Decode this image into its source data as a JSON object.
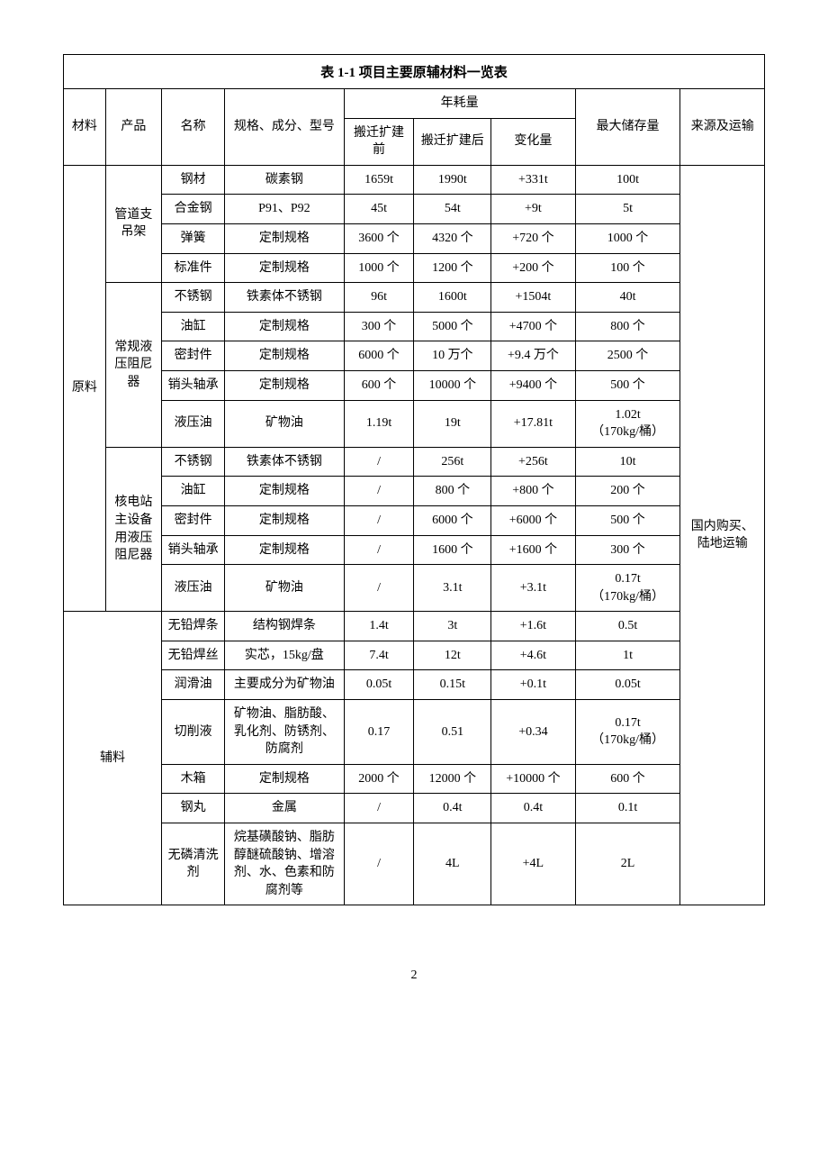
{
  "caption": "表 1-1   项目主要原辅材料一览表",
  "headers": {
    "material": "材料",
    "product": "产品",
    "name": "名称",
    "spec": "规格、成分、型号",
    "consumption": "年耗量",
    "before": "搬迁扩建前",
    "after": "搬迁扩建后",
    "change": "变化量",
    "storage": "最大储存量",
    "source": "来源及运输"
  },
  "materialGroups": {
    "raw": "原料",
    "aux": "辅料"
  },
  "productGroups": {
    "p1": "管道支吊架",
    "p2": "常规液压阻尼器",
    "p3": "核电站主设备用液压阻尼器"
  },
  "sourceText": "国内购买、\n陆地运输",
  "rows": [
    {
      "name": "钢材",
      "spec": "碳素钢",
      "before": "1659t",
      "after": "1990t",
      "change": "+331t",
      "storage": "100t"
    },
    {
      "name": "合金钢",
      "spec": "P91、P92",
      "before": "45t",
      "after": "54t",
      "change": "+9t",
      "storage": "5t"
    },
    {
      "name": "弹簧",
      "spec": "定制规格",
      "before": "3600 个",
      "after": "4320 个",
      "change": "+720 个",
      "storage": "1000 个"
    },
    {
      "name": "标准件",
      "spec": "定制规格",
      "before": "1000 个",
      "after": "1200 个",
      "change": "+200 个",
      "storage": "100 个"
    },
    {
      "name": "不锈钢",
      "spec": "铁素体不锈钢",
      "before": "96t",
      "after": "1600t",
      "change": "+1504t",
      "storage": "40t"
    },
    {
      "name": "油缸",
      "spec": "定制规格",
      "before": "300 个",
      "after": "5000 个",
      "change": "+4700 个",
      "storage": "800 个"
    },
    {
      "name": "密封件",
      "spec": "定制规格",
      "before": "6000 个",
      "after": "10 万个",
      "change": "+9.4 万个",
      "storage": "2500 个"
    },
    {
      "name": "销头轴承",
      "spec": "定制规格",
      "before": "600 个",
      "after": "10000 个",
      "change": "+9400 个",
      "storage": "500 个"
    },
    {
      "name": "液压油",
      "spec": "矿物油",
      "before": "1.19t",
      "after": "19t",
      "change": "+17.81t",
      "storage": "1.02t\n（170kg/桶）"
    },
    {
      "name": "不锈钢",
      "spec": "铁素体不锈钢",
      "before": "/",
      "after": "256t",
      "change": "+256t",
      "storage": "10t"
    },
    {
      "name": "油缸",
      "spec": "定制规格",
      "before": "/",
      "after": "800 个",
      "change": "+800 个",
      "storage": "200 个"
    },
    {
      "name": "密封件",
      "spec": "定制规格",
      "before": "/",
      "after": "6000 个",
      "change": "+6000 个",
      "storage": "500 个"
    },
    {
      "name": "销头轴承",
      "spec": "定制规格",
      "before": "/",
      "after": "1600 个",
      "change": "+1600 个",
      "storage": "300 个"
    },
    {
      "name": "液压油",
      "spec": "矿物油",
      "before": "/",
      "after": "3.1t",
      "change": "+3.1t",
      "storage": "0.17t\n（170kg/桶）"
    },
    {
      "name": "无铅焊条",
      "spec": "结构钢焊条",
      "before": "1.4t",
      "after": "3t",
      "change": "+1.6t",
      "storage": "0.5t"
    },
    {
      "name": "无铅焊丝",
      "spec": "实芯，15kg/盘",
      "before": "7.4t",
      "after": "12t",
      "change": "+4.6t",
      "storage": "1t"
    },
    {
      "name": "润滑油",
      "spec": "主要成分为矿物油",
      "before": "0.05t",
      "after": "0.15t",
      "change": "+0.1t",
      "storage": "0.05t"
    },
    {
      "name": "切削液",
      "spec": "矿物油、脂肪酸、乳化剂、防锈剂、防腐剂",
      "before": "0.17",
      "after": "0.51",
      "change": "+0.34",
      "storage": "0.17t\n（170kg/桶）"
    },
    {
      "name": "木箱",
      "spec": "定制规格",
      "before": "2000 个",
      "after": "12000 个",
      "change": "+10000 个",
      "storage": "600 个"
    },
    {
      "name": "钢丸",
      "spec": "金属",
      "before": "/",
      "after": "0.4t",
      "change": "0.4t",
      "storage": "0.1t"
    },
    {
      "name": "无磷清洗剂",
      "spec": "烷基磺酸钠、脂肪醇醚硫酸钠、增溶剂、水、色素和防腐剂等",
      "before": "/",
      "after": "4L",
      "change": "+4L",
      "storage": "2L"
    }
  ],
  "pageNumber": "2"
}
